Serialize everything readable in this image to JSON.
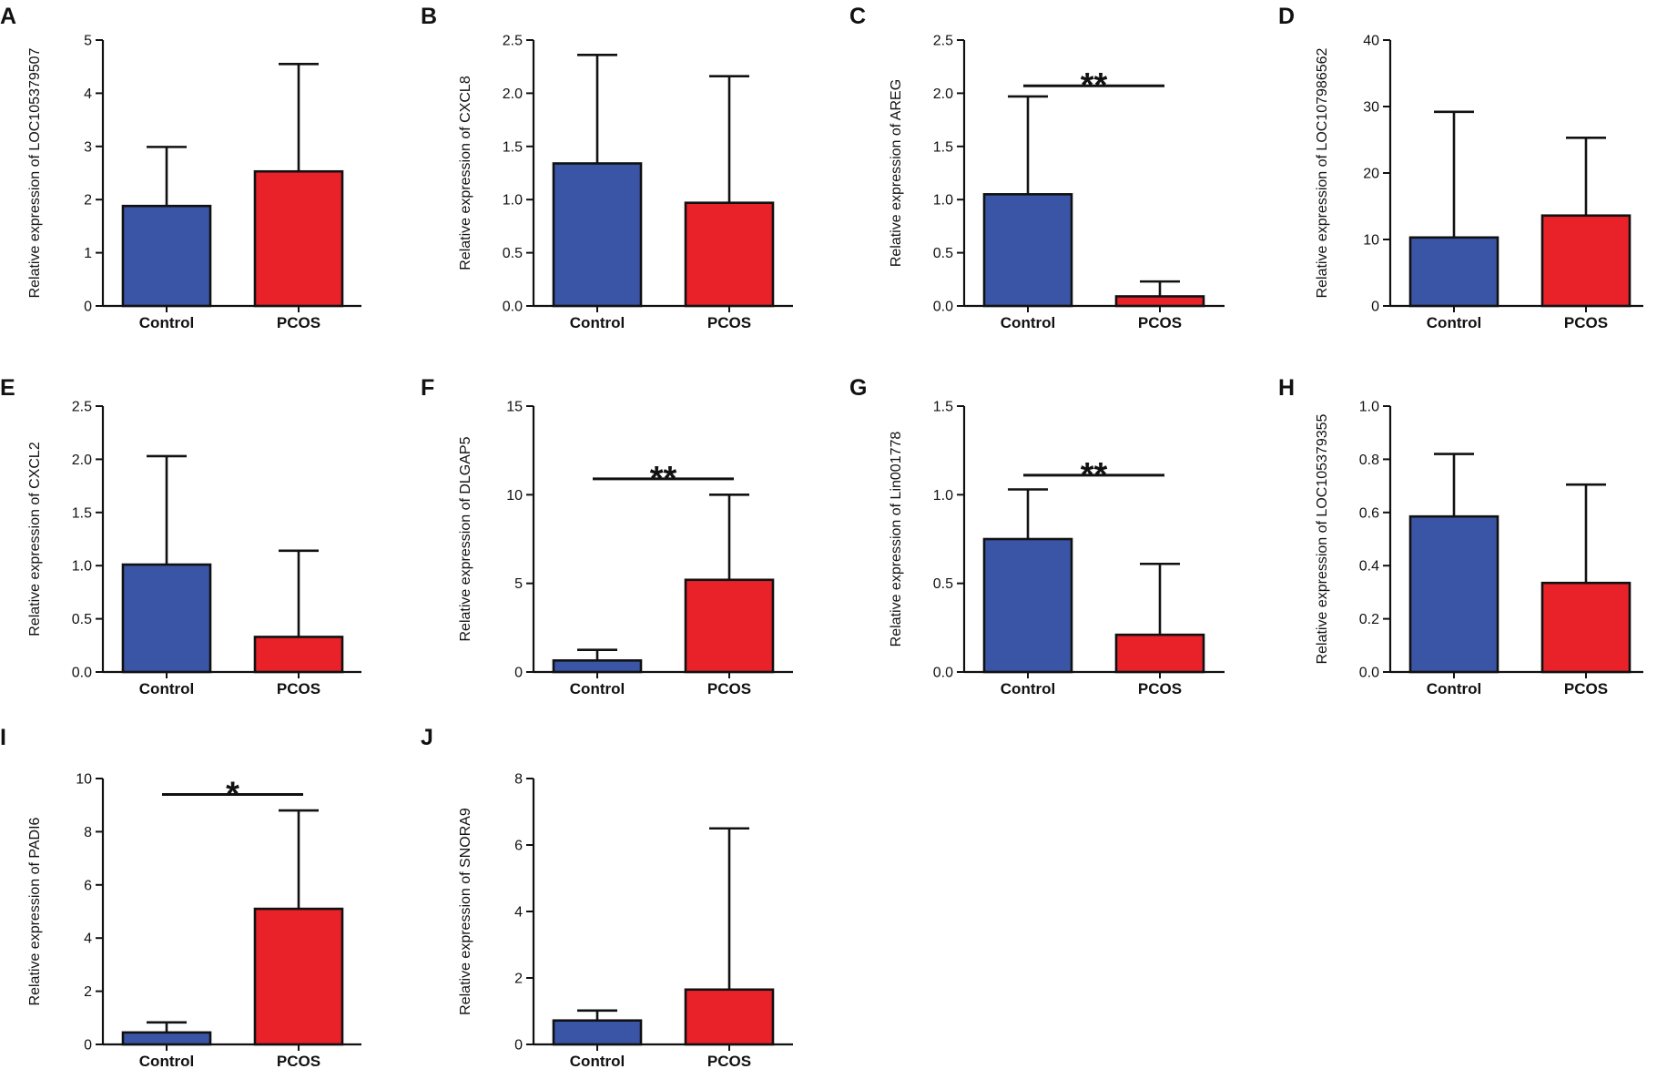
{
  "colors": {
    "control": "#3a55a6",
    "pcos": "#e9222a",
    "ink": "#111111"
  },
  "chart_data": [
    {
      "panel": "A",
      "type": "bar",
      "categories": [
        "Control",
        "PCOS"
      ],
      "values": [
        1.88,
        2.53
      ],
      "errors": [
        1.11,
        2.02
      ],
      "ylabel": "Relative expression of LOC105379507",
      "ylim": [
        0,
        5
      ],
      "ticks": [
        "0",
        "1",
        "2",
        "3",
        "4",
        "5"
      ],
      "significance": ""
    },
    {
      "panel": "B",
      "type": "bar",
      "categories": [
        "Control",
        "PCOS"
      ],
      "values": [
        1.34,
        0.97
      ],
      "errors": [
        1.02,
        1.19
      ],
      "ylabel": "Relative expression of CXCL8",
      "ylim": [
        0,
        2.5
      ],
      "ticks": [
        "0.0",
        "0.5",
        "1.0",
        "1.5",
        "2.0",
        "2.5"
      ],
      "significance": ""
    },
    {
      "panel": "C",
      "type": "bar",
      "categories": [
        "Control",
        "PCOS"
      ],
      "values": [
        1.05,
        0.09
      ],
      "errors": [
        0.92,
        0.14
      ],
      "ylabel": "Relative expression of AREG",
      "ylim": [
        0,
        2.5
      ],
      "ticks": [
        "0.0",
        "0.5",
        "1.0",
        "1.5",
        "2.0",
        "2.5"
      ],
      "significance": "**",
      "sig_y": 2.07
    },
    {
      "panel": "D",
      "type": "bar",
      "categories": [
        "Control",
        "PCOS"
      ],
      "values": [
        10.3,
        13.6
      ],
      "errors": [
        18.9,
        11.7
      ],
      "ylabel": "Relative expression of LOC107986562",
      "ylim": [
        0,
        40
      ],
      "ticks": [
        "0",
        "10",
        "20",
        "30",
        "40"
      ],
      "significance": ""
    },
    {
      "panel": "E",
      "type": "bar",
      "categories": [
        "Control",
        "PCOS"
      ],
      "values": [
        1.01,
        0.33
      ],
      "errors": [
        1.02,
        0.81
      ],
      "ylabel": "Relative expression of CXCL2",
      "ylim": [
        0,
        2.5
      ],
      "ticks": [
        "0.0",
        "0.5",
        "1.0",
        "1.5",
        "2.0",
        "2.5"
      ],
      "significance": ""
    },
    {
      "panel": "F",
      "type": "bar",
      "categories": [
        "Control",
        "PCOS"
      ],
      "values": [
        0.65,
        5.2
      ],
      "errors": [
        0.6,
        4.8
      ],
      "ylabel": "Relative expression of DLGAP5",
      "ylim": [
        0,
        15
      ],
      "ticks": [
        "0",
        "5",
        "10",
        "15"
      ],
      "significance": "**",
      "sig_y": 10.9
    },
    {
      "panel": "G",
      "type": "bar",
      "categories": [
        "Control",
        "PCOS"
      ],
      "values": [
        0.75,
        0.21
      ],
      "errors": [
        0.28,
        0.4
      ],
      "ylabel": "Relative expression of Lin001778",
      "ylim": [
        0,
        1.5
      ],
      "ticks": [
        "0.0",
        "0.5",
        "1.0",
        "1.5"
      ],
      "significance": "**",
      "sig_y": 1.11
    },
    {
      "panel": "H",
      "type": "bar",
      "categories": [
        "Control",
        "PCOS"
      ],
      "values": [
        0.585,
        0.335
      ],
      "errors": [
        0.235,
        0.37
      ],
      "ylabel": "Relative expression of LOC105379355",
      "ylim": [
        0,
        1.0
      ],
      "ticks": [
        "0.0",
        "0.2",
        "0.4",
        "0.6",
        "0.8",
        "1.0"
      ],
      "significance": ""
    },
    {
      "panel": "I",
      "type": "bar",
      "categories": [
        "Control",
        "PCOS"
      ],
      "values": [
        0.45,
        5.1
      ],
      "errors": [
        0.38,
        3.7
      ],
      "ylabel": "Relative expression of PADI6",
      "ylim": [
        0,
        10
      ],
      "ticks": [
        "0",
        "2",
        "4",
        "6",
        "8",
        "10"
      ],
      "significance": "*",
      "sig_y": 9.4
    },
    {
      "panel": "J",
      "type": "bar",
      "categories": [
        "Control",
        "PCOS"
      ],
      "values": [
        0.72,
        1.65
      ],
      "errors": [
        0.3,
        4.85
      ],
      "ylabel": "Relative expression of SNORA9",
      "ylim": [
        0,
        8
      ],
      "ticks": [
        "0",
        "2",
        "4",
        "6",
        "8"
      ],
      "significance": ""
    }
  ]
}
